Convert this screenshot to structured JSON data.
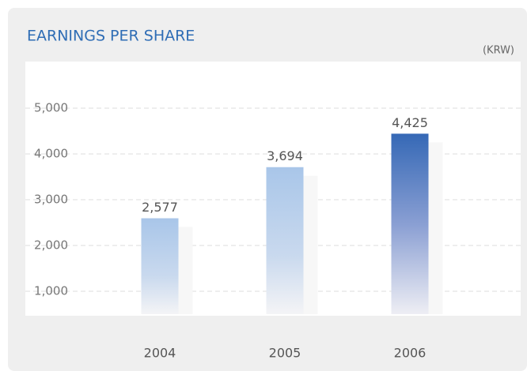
{
  "chart_data": {
    "type": "bar",
    "title": "EARNINGS PER SHARE",
    "unit": "(KRW)",
    "categories": [
      "2004",
      "2005",
      "2006"
    ],
    "values": [
      2577,
      3694,
      4425
    ],
    "value_labels": [
      "2,577",
      "3,694",
      "4,425"
    ],
    "colors": [
      "#a9c6e9",
      "#a9c6e9",
      "#3669b6"
    ],
    "ylim": [
      500,
      5500
    ],
    "yticks": [
      {
        "value": 1000,
        "label": "1,000"
      },
      {
        "value": 2000,
        "label": "2,000"
      },
      {
        "value": 3000,
        "label": "3,000"
      },
      {
        "value": 4000,
        "label": "4,000"
      },
      {
        "value": 5000,
        "label": "5,000"
      }
    ],
    "grid": true
  }
}
